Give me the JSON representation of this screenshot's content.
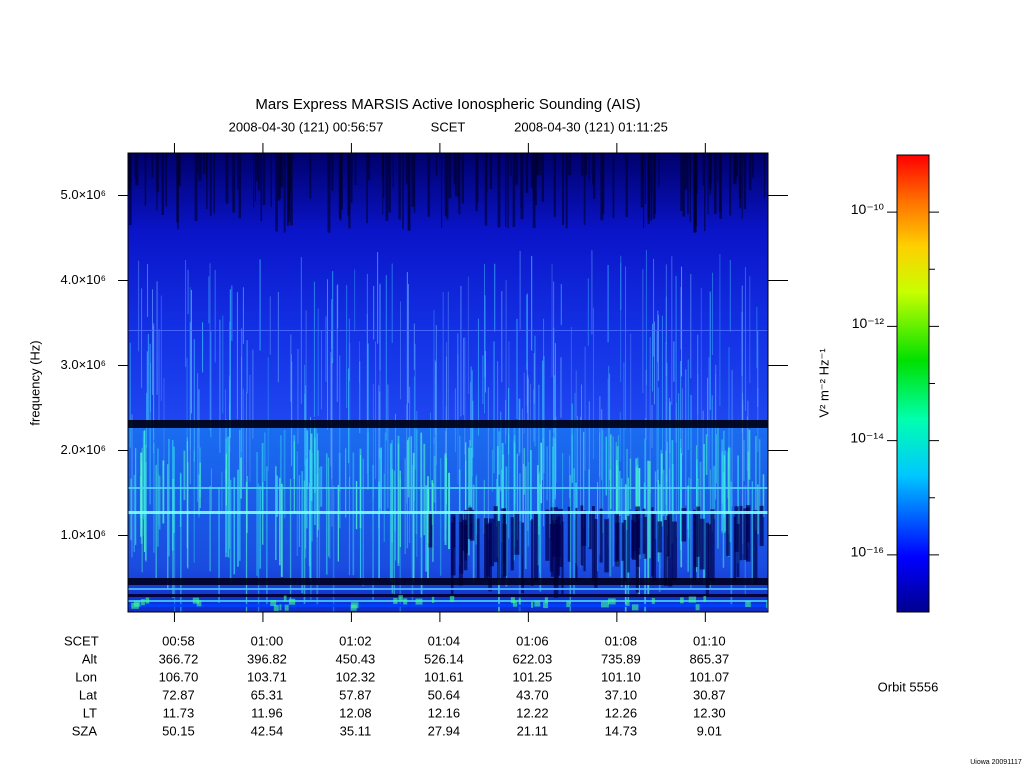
{
  "chart_data": {
    "type": "spectrogram",
    "title": "Mars Express MARSIS Active Ionospheric Sounding (AIS)",
    "start": "2008-04-30 (121) 00:56:57",
    "time_label": "SCET",
    "end": "2008-04-30 (121) 01:11:25",
    "ylabel": "frequency (Hz)",
    "ylim": [
      100000,
      5500000
    ],
    "yticks": [
      {
        "value": 1000000,
        "label": "1.0×10⁶"
      },
      {
        "value": 2000000,
        "label": "2.0×10⁶"
      },
      {
        "value": 3000000,
        "label": "3.0×10⁶"
      },
      {
        "value": 4000000,
        "label": "4.0×10⁶"
      },
      {
        "value": 5000000,
        "label": "5.0×10⁶"
      }
    ],
    "x": [
      "00:58",
      "01:00",
      "01:02",
      "01:04",
      "01:06",
      "01:08",
      "01:10"
    ],
    "ephemeris": {
      "header": "SCET",
      "rows": [
        {
          "name": "Alt",
          "cells": [
            "366.72",
            "396.82",
            "450.43",
            "526.14",
            "622.03",
            "735.89",
            "865.37"
          ]
        },
        {
          "name": "Lon",
          "cells": [
            "106.70",
            "103.71",
            "102.32",
            "101.61",
            "101.25",
            "101.10",
            "101.07"
          ]
        },
        {
          "name": "Lat",
          "cells": [
            "72.87",
            "65.31",
            "57.87",
            "50.64",
            "43.70",
            "37.10",
            "30.87"
          ]
        },
        {
          "name": "LT",
          "cells": [
            "11.73",
            "11.96",
            "12.08",
            "12.16",
            "12.22",
            "12.26",
            "12.30"
          ]
        },
        {
          "name": "SZA",
          "cells": [
            "50.15",
            "42.54",
            "35.11",
            "27.94",
            "21.11",
            "14.73",
            "9.01"
          ]
        }
      ]
    },
    "colorbar": {
      "scale": "log",
      "lim": [
        1e-17,
        1e-09
      ],
      "ticks": [
        {
          "value": 1e-10,
          "label": "10⁻¹⁰"
        },
        {
          "value": 1e-12,
          "label": "10⁻¹²"
        },
        {
          "value": 1e-14,
          "label": "10⁻¹⁴"
        },
        {
          "value": 1e-16,
          "label": "10⁻¹⁶"
        }
      ],
      "minor_ticks": [
        1e-11,
        1e-13,
        1e-15
      ],
      "label": "V² m⁻² Hz⁻¹"
    },
    "orbit": "Orbit 5556",
    "footer": "Uiowa 20091117"
  }
}
